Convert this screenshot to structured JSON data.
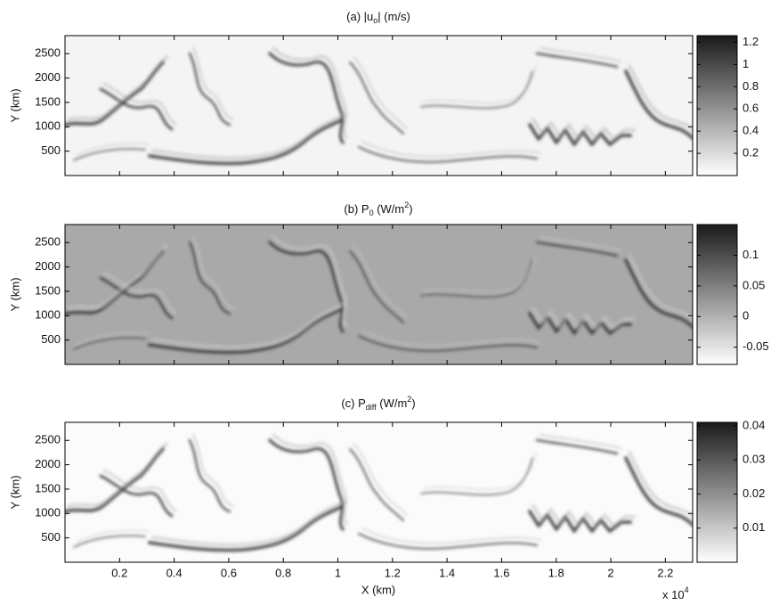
{
  "chart_data": [
    {
      "type": "heatmap",
      "title": [
        "(a) |u",
        "o",
        "| (m/s)"
      ],
      "ylabel": "Y (km)",
      "xlim": [
        0,
        2.3
      ],
      "ylim": [
        0,
        2870
      ],
      "yticks": [
        500,
        1000,
        1500,
        2000,
        2500
      ],
      "clim": [
        0,
        1.26
      ],
      "cticks": [
        0.2,
        0.4,
        0.6,
        0.8,
        1,
        1.2
      ],
      "background": "#f4f4f4"
    },
    {
      "type": "heatmap",
      "title": [
        "(b) P",
        "0",
        " (W/m",
        "2",
        ")"
      ],
      "ylabel": "Y (km)",
      "xlim": [
        0,
        2.3
      ],
      "ylim": [
        0,
        2870
      ],
      "yticks": [
        500,
        1000,
        1500,
        2000,
        2500
      ],
      "clim": [
        -0.078,
        0.15
      ],
      "cticks": [
        -0.05,
        0,
        0.05,
        0.1
      ],
      "background": "#a9a9a9"
    },
    {
      "type": "heatmap",
      "title": [
        "(c) P",
        "diff",
        " (W/m",
        "2",
        ")"
      ],
      "ylabel": "Y (km)",
      "xlabel": "X (km)",
      "xscale": [
        "x 10",
        "4"
      ],
      "xlim": [
        0,
        2.3
      ],
      "ylim": [
        0,
        2870
      ],
      "xticks": [
        0.2,
        0.4,
        0.6,
        0.8,
        1,
        1.2,
        1.4,
        1.6,
        1.8,
        2,
        2.2
      ],
      "yticks": [
        500,
        1000,
        1500,
        2000,
        2500
      ],
      "clim": [
        0,
        0.041
      ],
      "cticks": [
        0.01,
        0.02,
        0.03,
        0.04
      ],
      "background": "#fbfbfb"
    }
  ]
}
